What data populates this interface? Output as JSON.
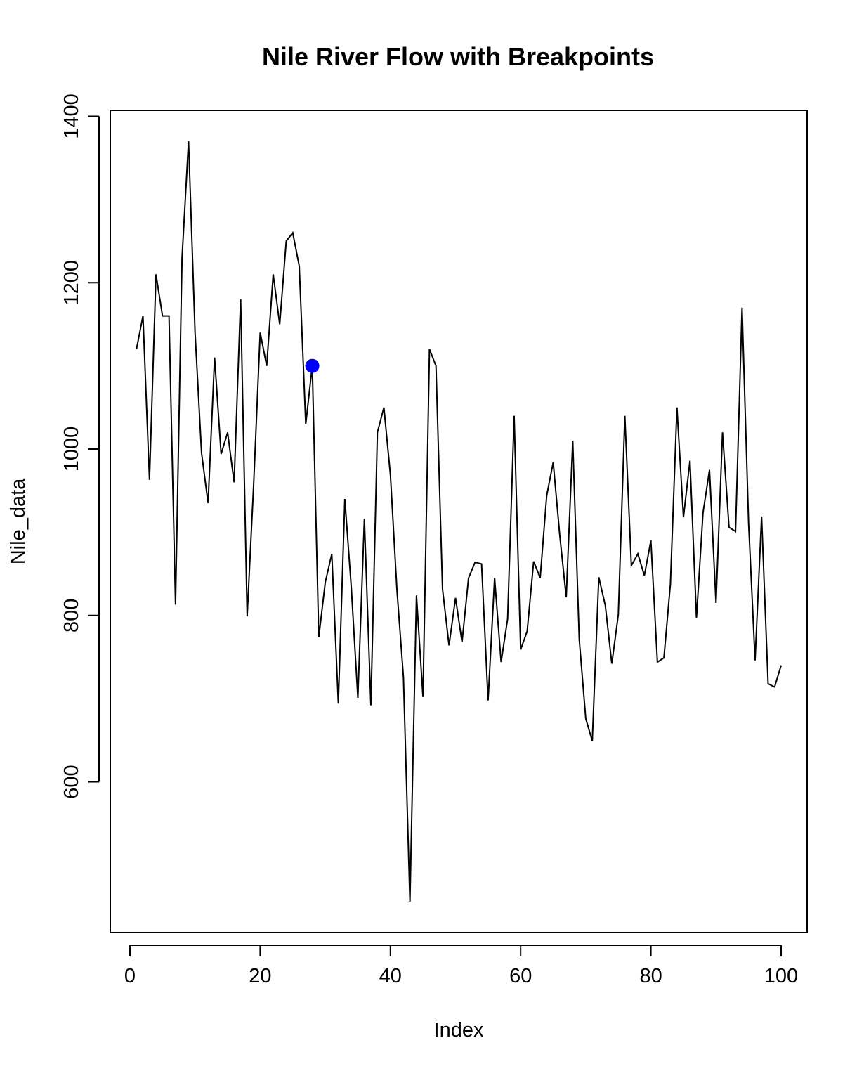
{
  "chart_data": {
    "type": "line",
    "title": "Nile River Flow with Breakpoints",
    "xlabel": "Index",
    "ylabel": "Nile_data",
    "xlim": [
      0,
      100
    ],
    "ylim": [
      456,
      1370
    ],
    "x_ticks": [
      0,
      20,
      40,
      60,
      80,
      100
    ],
    "y_ticks": [
      600,
      800,
      1000,
      1200,
      1400
    ],
    "grid": false,
    "series": [
      {
        "color": "#000000",
        "x": [
          1,
          2,
          3,
          4,
          5,
          6,
          7,
          8,
          9,
          10,
          11,
          12,
          13,
          14,
          15,
          16,
          17,
          18,
          19,
          20,
          21,
          22,
          23,
          24,
          25,
          26,
          27,
          28,
          29,
          30,
          31,
          32,
          33,
          34,
          35,
          36,
          37,
          38,
          39,
          40,
          41,
          42,
          43,
          44,
          45,
          46,
          47,
          48,
          49,
          50,
          51,
          52,
          53,
          54,
          55,
          56,
          57,
          58,
          59,
          60,
          61,
          62,
          63,
          64,
          65,
          66,
          67,
          68,
          69,
          70,
          71,
          72,
          73,
          74,
          75,
          76,
          77,
          78,
          79,
          80,
          81,
          82,
          83,
          84,
          85,
          86,
          87,
          88,
          89,
          90,
          91,
          92,
          93,
          94,
          95,
          96,
          97,
          98,
          99,
          100
        ],
        "values": [
          1120,
          1160,
          963,
          1210,
          1160,
          1160,
          813,
          1230,
          1370,
          1140,
          995,
          935,
          1110,
          994,
          1020,
          960,
          1180,
          799,
          958,
          1140,
          1100,
          1210,
          1150,
          1250,
          1260,
          1220,
          1030,
          1100,
          774,
          840,
          874,
          694,
          940,
          833,
          701,
          916,
          692,
          1020,
          1050,
          969,
          831,
          726,
          456,
          824,
          702,
          1120,
          1100,
          832,
          764,
          821,
          768,
          845,
          864,
          862,
          698,
          845,
          744,
          796,
          1040,
          759,
          781,
          865,
          845,
          944,
          984,
          897,
          822,
          1010,
          771,
          676,
          649,
          846,
          812,
          742,
          801,
          1040,
          860,
          874,
          848,
          890,
          744,
          749,
          838,
          1050,
          918,
          986,
          797,
          923,
          975,
          815,
          1020,
          906,
          901,
          1170,
          912,
          746,
          919,
          718,
          714,
          740
        ]
      }
    ],
    "highlight_points": [
      {
        "x": 28,
        "y": 1100,
        "color": "#0000ff"
      }
    ]
  }
}
